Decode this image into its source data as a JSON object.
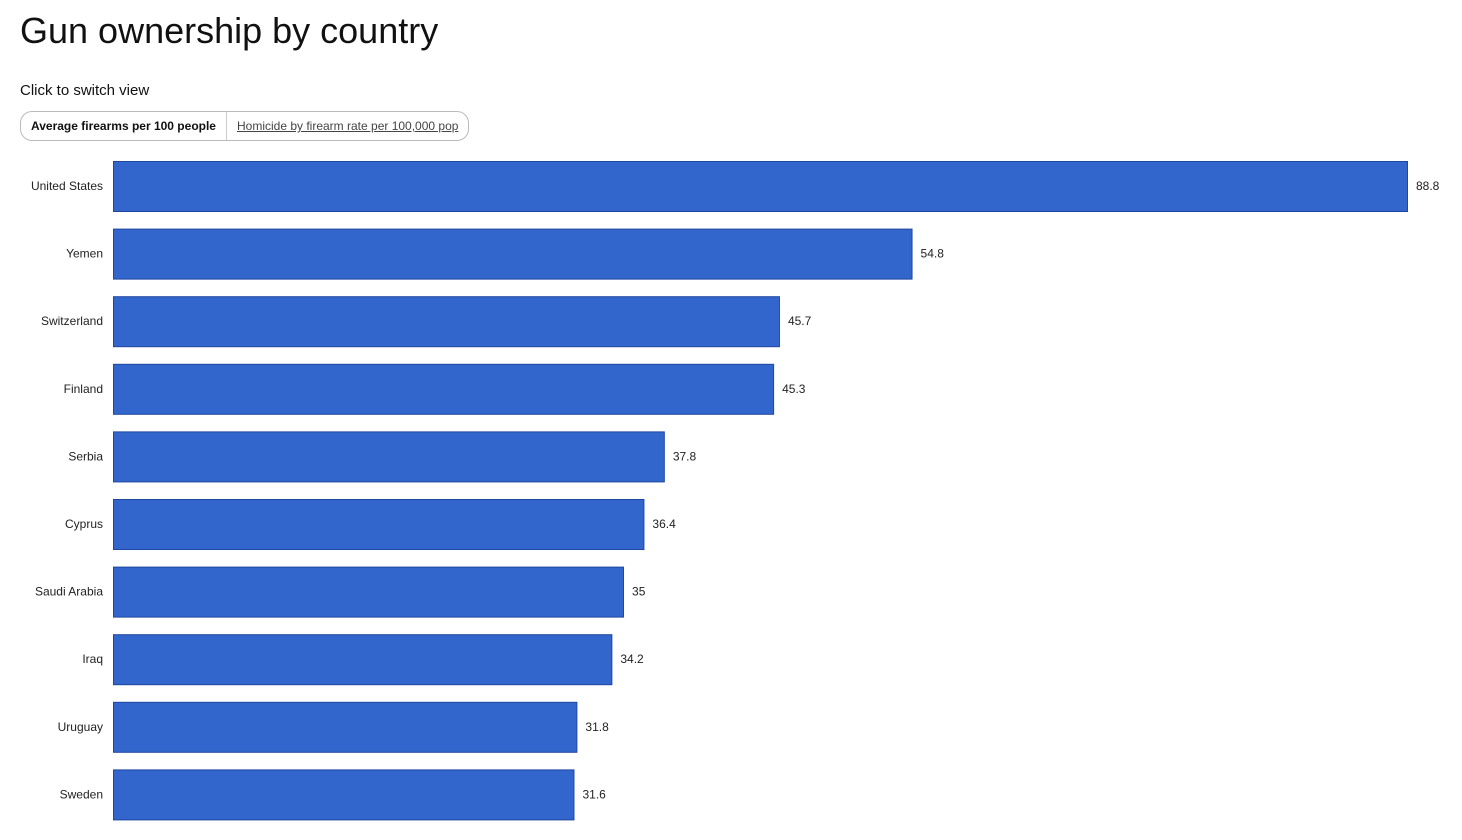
{
  "page": {
    "title": "Gun ownership by country",
    "switch_prompt": "Click to switch view"
  },
  "toggle": {
    "active_label": "Average firearms per 100 people",
    "inactive_label": "Homicide by firearm rate per 100,000 pop"
  },
  "colors": {
    "bar": "#3366cc",
    "bar_border": "#1f47a0"
  },
  "chart_data": {
    "type": "bar",
    "orientation": "horizontal",
    "categories": [
      "United States",
      "Yemen",
      "Switzerland",
      "Finland",
      "Serbia",
      "Cyprus",
      "Saudi Arabia",
      "Iraq",
      "Uruguay",
      "Sweden"
    ],
    "values": [
      88.8,
      54.8,
      45.7,
      45.3,
      37.8,
      36.4,
      35,
      34.2,
      31.8,
      31.6
    ],
    "data_labels": [
      "88.8",
      "54.8",
      "45.7",
      "45.3",
      "37.8",
      "36.4",
      "35",
      "34.2",
      "31.8",
      "31.6"
    ],
    "xlim": [
      0,
      88.8
    ],
    "grid": false,
    "legend": "none"
  }
}
